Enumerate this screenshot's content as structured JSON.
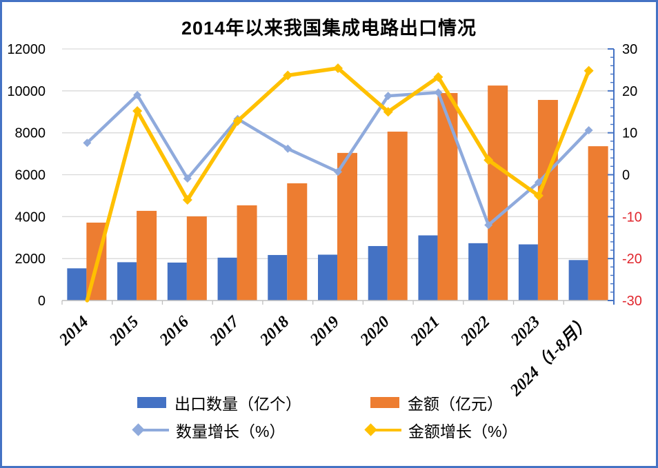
{
  "frame": {
    "border_color": "#4472C4",
    "background": "#FFFFFF"
  },
  "chart_data": {
    "type": "combo-bar-line",
    "title": "2014年以来我国集成电路出口情况",
    "categories": [
      "2014",
      "2015",
      "2016",
      "2017",
      "2018",
      "2019",
      "2020",
      "2021",
      "2022",
      "2023",
      "2024（1-8月）"
    ],
    "bar_series": [
      {
        "name": "出口数量（亿个）",
        "color": "#4472C4",
        "axis": "left",
        "values": [
          1535,
          1827,
          1810,
          2044,
          2171,
          2187,
          2598,
          3107,
          2734,
          2678,
          1930
        ]
      },
      {
        "name": "金额（亿元）",
        "color": "#ED7D31",
        "axis": "left",
        "values": [
          3716,
          4277,
          4013,
          4540,
          5591,
          7040,
          8056,
          9897,
          10254,
          9568,
          7360
        ]
      }
    ],
    "line_series": [
      {
        "name": "数量增长（%）",
        "color": "#8FAADC",
        "axis": "right",
        "marker": "diamond",
        "values": [
          7.6,
          19.0,
          -0.9,
          13.3,
          6.2,
          0.7,
          18.8,
          19.6,
          -12.0,
          -1.8,
          10.6
        ]
      },
      {
        "name": "金额增长（%）",
        "color": "#FFC000",
        "axis": "right",
        "marker": "diamond",
        "values": [
          -30,
          15.2,
          -6.0,
          12.8,
          23.7,
          25.4,
          15.0,
          23.3,
          3.5,
          -5.0,
          24.8
        ]
      }
    ],
    "left_axis": {
      "min": 0,
      "max": 12000,
      "step": 2000,
      "tick_labels": [
        "0",
        "2000",
        "4000",
        "6000",
        "8000",
        "10000",
        "12000"
      ],
      "label_color": "#000000"
    },
    "right_axis": {
      "min": -30,
      "max": 30,
      "step": 10,
      "minor_step": 2,
      "tick_labels": [
        "-30",
        "-20",
        "-10",
        "0",
        "10",
        "20",
        "30"
      ],
      "positive_color": "#000000",
      "negative_color": "#E0262D",
      "line_color": "#4472C4"
    },
    "grid": {
      "show": true,
      "color": "#D9D9D9"
    },
    "x_axis": {
      "line_color": "#BFBFBF"
    },
    "legend_position": "bottom"
  }
}
